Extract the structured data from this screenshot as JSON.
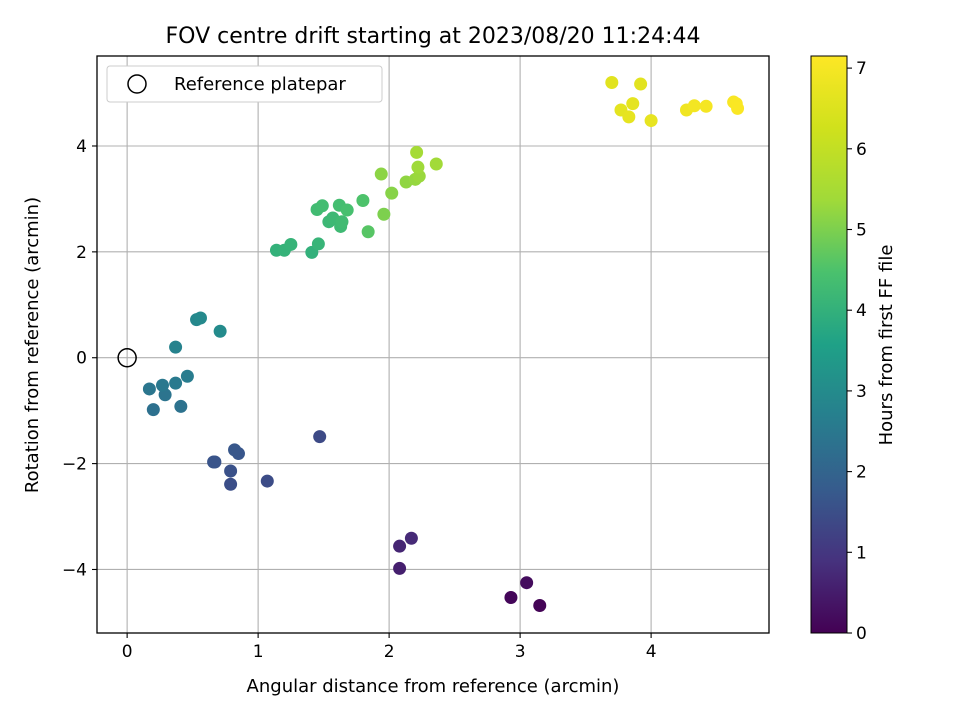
{
  "chart_data": {
    "type": "scatter",
    "title": "FOV centre drift starting at 2023/08/20 11:24:44",
    "xlabel": "Angular distance from reference (arcmin)",
    "ylabel": "Rotation from reference (arcmin)",
    "xlim": [
      -0.23,
      4.9
    ],
    "ylim": [
      -5.2,
      5.7
    ],
    "xticks": [
      0,
      1,
      2,
      3,
      4
    ],
    "xtick_labels": [
      "0",
      "1",
      "2",
      "3",
      "4"
    ],
    "yticks": [
      -4,
      -2,
      0,
      2,
      4
    ],
    "ytick_labels": [
      "−4",
      "−2",
      "0",
      "2",
      "4"
    ],
    "grid": true,
    "legend": {
      "placement": "top-left",
      "entries": [
        {
          "label": "Reference platepar",
          "marker": "open-circle"
        }
      ]
    },
    "reference_point": {
      "x": 0,
      "y": 0,
      "name": "Reference platepar"
    },
    "colorbar": {
      "label": "Hours from first FF file",
      "range": [
        0,
        7.15
      ],
      "ticks": [
        0,
        1,
        2,
        3,
        4,
        5,
        6,
        7
      ],
      "tick_labels": [
        "0",
        "1",
        "2",
        "3",
        "4",
        "5",
        "6",
        "7"
      ],
      "colormap": "viridis"
    },
    "points": [
      {
        "x": 3.15,
        "y": -4.68,
        "c": 0.05
      },
      {
        "x": 2.93,
        "y": -4.53,
        "c": 0.1
      },
      {
        "x": 3.05,
        "y": -4.25,
        "c": 0.2
      },
      {
        "x": 2.08,
        "y": -3.98,
        "c": 0.55
      },
      {
        "x": 2.08,
        "y": -3.56,
        "c": 0.65
      },
      {
        "x": 2.17,
        "y": -3.41,
        "c": 0.75
      },
      {
        "x": 1.47,
        "y": -1.49,
        "c": 1.4
      },
      {
        "x": 1.07,
        "y": -2.33,
        "c": 1.45
      },
      {
        "x": 0.79,
        "y": -2.39,
        "c": 1.5
      },
      {
        "x": 0.79,
        "y": -2.14,
        "c": 1.55
      },
      {
        "x": 0.67,
        "y": -1.97,
        "c": 1.6
      },
      {
        "x": 0.66,
        "y": -1.97,
        "c": 1.62
      },
      {
        "x": 0.85,
        "y": -1.81,
        "c": 1.65
      },
      {
        "x": 0.82,
        "y": -1.74,
        "c": 1.68
      },
      {
        "x": 0.2,
        "y": -0.98,
        "c": 2.3
      },
      {
        "x": 0.41,
        "y": -0.92,
        "c": 2.35
      },
      {
        "x": 0.29,
        "y": -0.7,
        "c": 2.4
      },
      {
        "x": 0.17,
        "y": -0.59,
        "c": 2.45
      },
      {
        "x": 0.27,
        "y": -0.52,
        "c": 2.5
      },
      {
        "x": 0.37,
        "y": -0.48,
        "c": 2.55
      },
      {
        "x": 0.46,
        "y": -0.35,
        "c": 2.6
      },
      {
        "x": 0.37,
        "y": 0.2,
        "c": 2.75
      },
      {
        "x": 0.53,
        "y": 0.72,
        "c": 2.9
      },
      {
        "x": 0.56,
        "y": 0.75,
        "c": 2.95
      },
      {
        "x": 0.71,
        "y": 0.5,
        "c": 3.0
      },
      {
        "x": 1.41,
        "y": 1.99,
        "c": 4.0
      },
      {
        "x": 1.14,
        "y": 2.03,
        "c": 4.02
      },
      {
        "x": 1.2,
        "y": 2.03,
        "c": 4.05
      },
      {
        "x": 1.25,
        "y": 2.14,
        "c": 4.08
      },
      {
        "x": 1.46,
        "y": 2.15,
        "c": 4.1
      },
      {
        "x": 1.54,
        "y": 2.57,
        "c": 4.2
      },
      {
        "x": 1.57,
        "y": 2.64,
        "c": 4.22
      },
      {
        "x": 1.63,
        "y": 2.48,
        "c": 4.25
      },
      {
        "x": 1.64,
        "y": 2.57,
        "c": 4.28
      },
      {
        "x": 1.45,
        "y": 2.8,
        "c": 4.3
      },
      {
        "x": 1.49,
        "y": 2.87,
        "c": 4.32
      },
      {
        "x": 1.62,
        "y": 2.88,
        "c": 4.35
      },
      {
        "x": 1.68,
        "y": 2.79,
        "c": 4.4
      },
      {
        "x": 1.8,
        "y": 2.97,
        "c": 4.5
      },
      {
        "x": 1.84,
        "y": 2.38,
        "c": 4.6
      },
      {
        "x": 1.96,
        "y": 2.71,
        "c": 5.0
      },
      {
        "x": 2.02,
        "y": 3.11,
        "c": 5.1
      },
      {
        "x": 1.94,
        "y": 3.47,
        "c": 5.15
      },
      {
        "x": 2.13,
        "y": 3.32,
        "c": 5.2
      },
      {
        "x": 2.2,
        "y": 3.37,
        "c": 5.25
      },
      {
        "x": 2.23,
        "y": 3.43,
        "c": 5.3
      },
      {
        "x": 2.22,
        "y": 3.6,
        "c": 5.35
      },
      {
        "x": 2.36,
        "y": 3.66,
        "c": 5.4
      },
      {
        "x": 2.21,
        "y": 3.88,
        "c": 5.45
      },
      {
        "x": 3.7,
        "y": 5.2,
        "c": 6.6
      },
      {
        "x": 3.92,
        "y": 5.17,
        "c": 6.62
      },
      {
        "x": 3.77,
        "y": 4.68,
        "c": 6.65
      },
      {
        "x": 3.86,
        "y": 4.8,
        "c": 6.68
      },
      {
        "x": 3.83,
        "y": 4.55,
        "c": 6.7
      },
      {
        "x": 4.0,
        "y": 4.48,
        "c": 6.72
      },
      {
        "x": 4.27,
        "y": 4.68,
        "c": 6.9
      },
      {
        "x": 4.33,
        "y": 4.76,
        "c": 6.95
      },
      {
        "x": 4.42,
        "y": 4.75,
        "c": 7.0
      },
      {
        "x": 4.63,
        "y": 4.83,
        "c": 7.05
      },
      {
        "x": 4.65,
        "y": 4.8,
        "c": 7.08
      },
      {
        "x": 4.66,
        "y": 4.71,
        "c": 7.1
      }
    ]
  }
}
